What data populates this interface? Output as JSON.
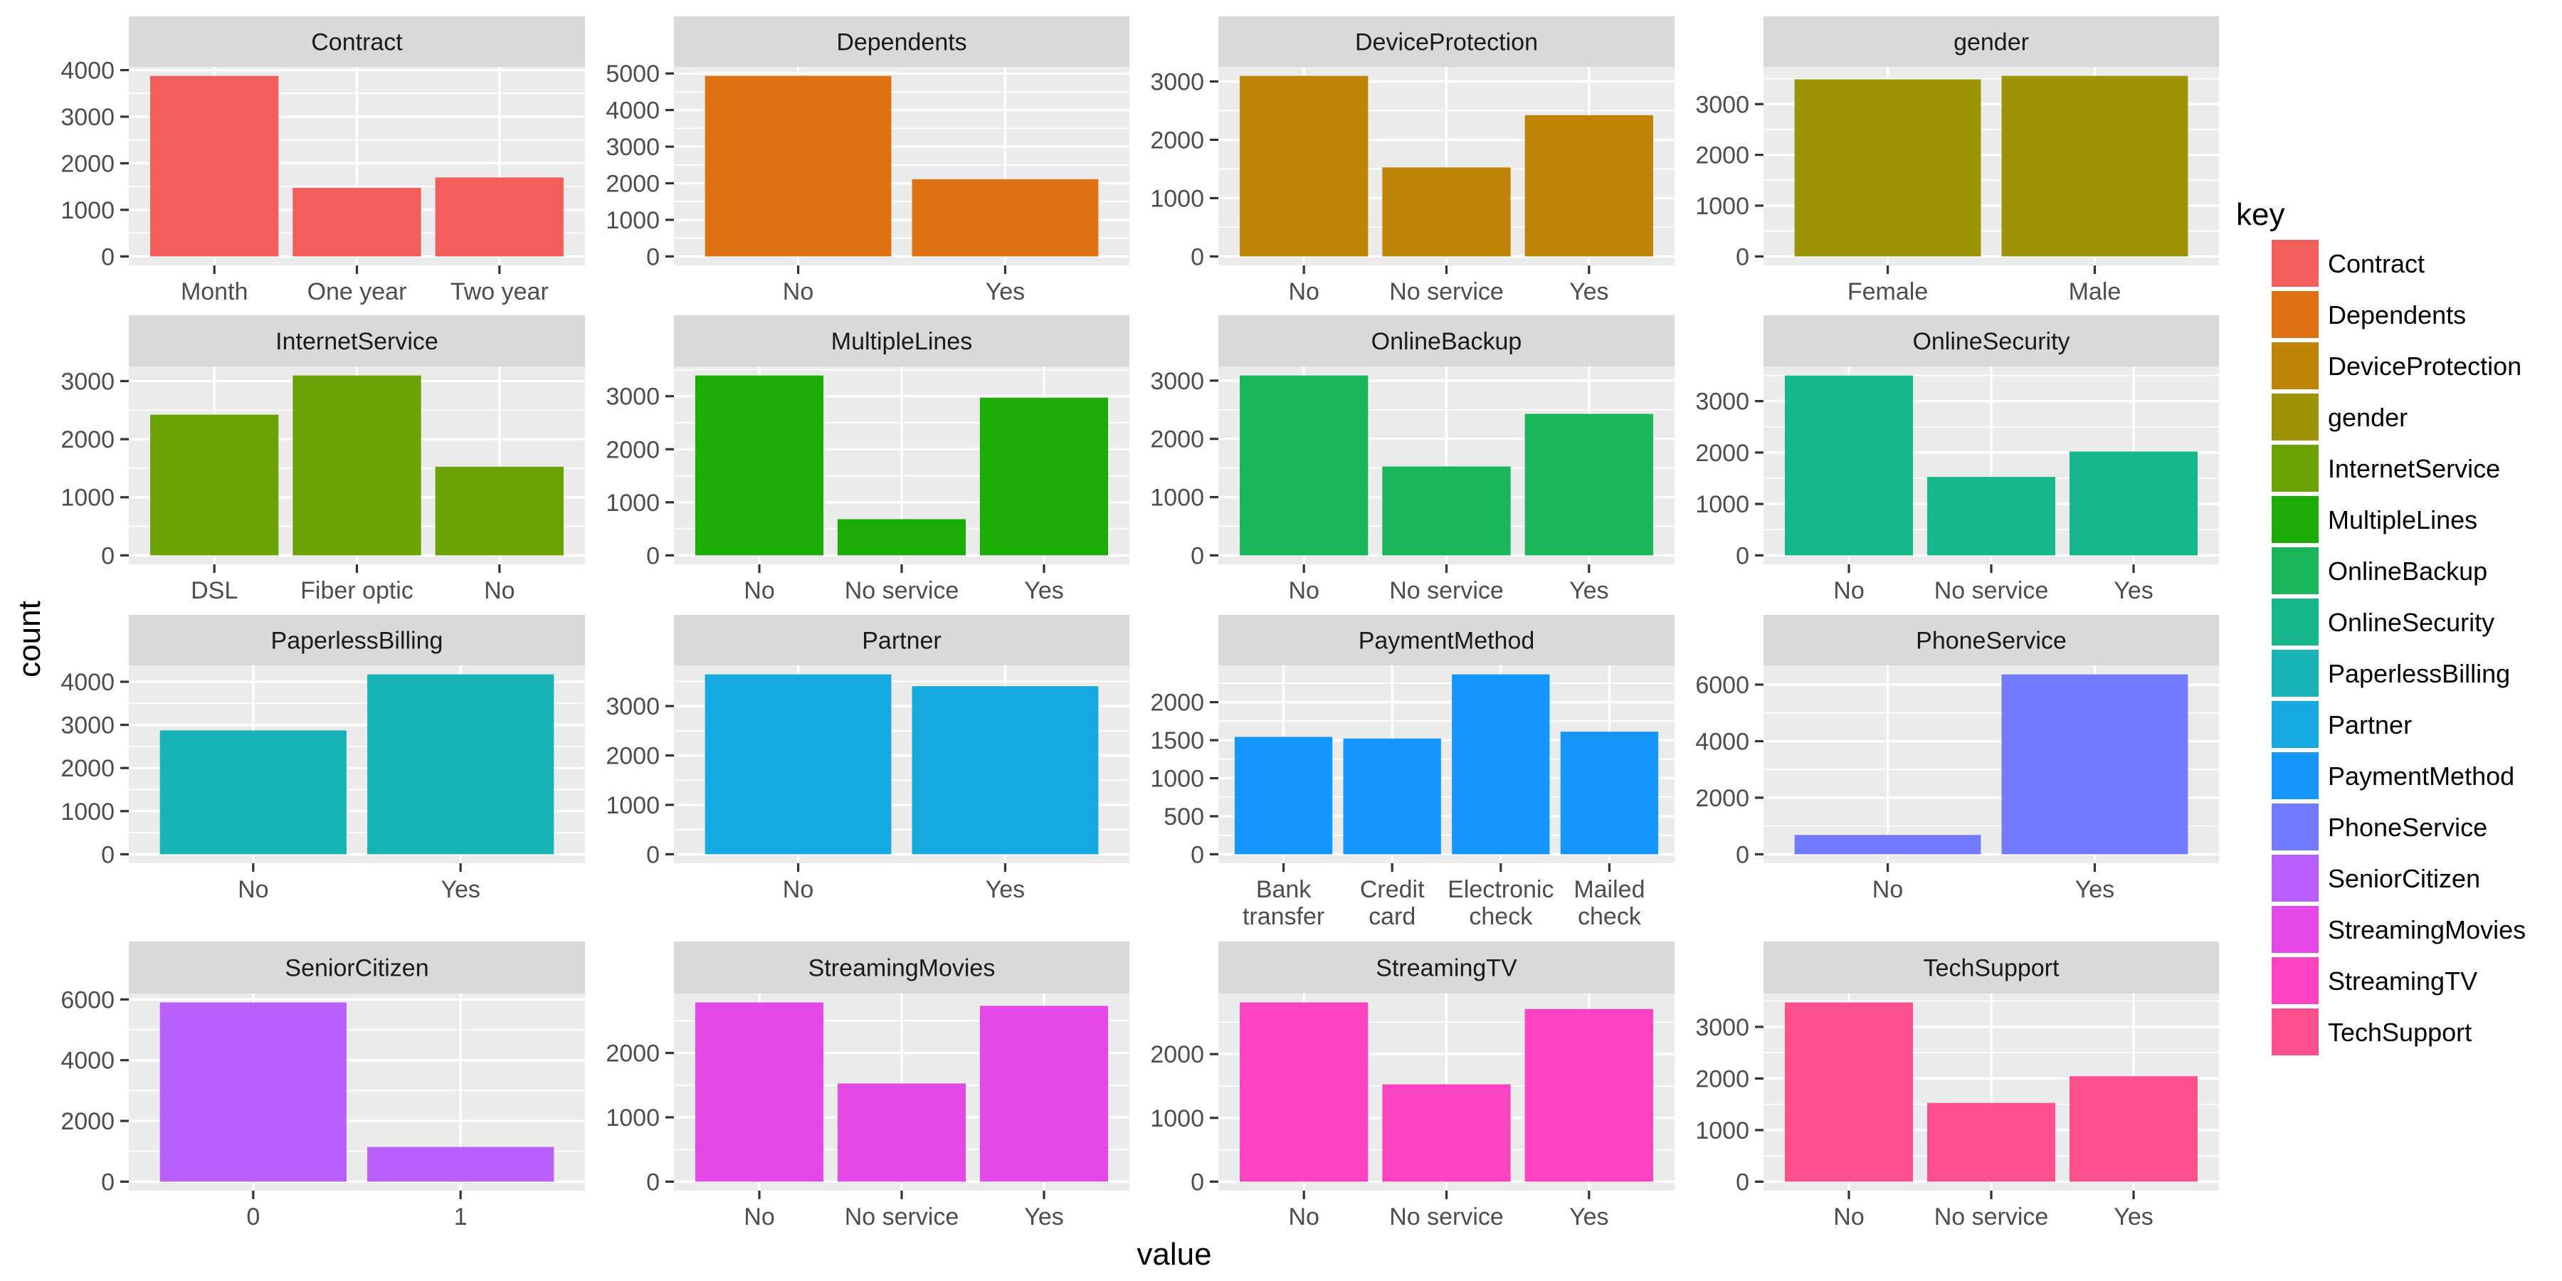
{
  "chart_data": {
    "type": "bar",
    "layout": "facet_wrap",
    "facet_columns": 4,
    "y_scales": "free",
    "grid": true,
    "xlabel": "value",
    "ylabel": "count",
    "legend": {
      "title": "key",
      "placement": "right",
      "entries": [
        {
          "label": "Contract",
          "color": "#F35E5A"
        },
        {
          "label": "Dependents",
          "color": "#DE7213"
        },
        {
          "label": "DeviceProtection",
          "color": "#C08405"
        },
        {
          "label": "gender",
          "color": "#9C9405"
        },
        {
          "label": "InternetService",
          "color": "#6BA305"
        },
        {
          "label": "MultipleLines",
          "color": "#1BAD06"
        },
        {
          "label": "OnlineBackup",
          "color": "#19B55A"
        },
        {
          "label": "OnlineSecurity",
          "color": "#16B88B"
        },
        {
          "label": "PaperlessBilling",
          "color": "#17B3B7"
        },
        {
          "label": "Partner",
          "color": "#16A9E0"
        },
        {
          "label": "PaymentMethod",
          "color": "#1496FC"
        },
        {
          "label": "PhoneService",
          "color": "#727BFF"
        },
        {
          "label": "SeniorCitizen",
          "color": "#B95FFD"
        },
        {
          "label": "StreamingMovies",
          "color": "#E449E8"
        },
        {
          "label": "StreamingTV",
          "color": "#FB43C2"
        },
        {
          "label": "TechSupport",
          "color": "#FD4F8E"
        }
      ]
    },
    "panels": [
      {
        "title": "Contract",
        "categories": [
          "Month",
          "One year",
          "Two year"
        ],
        "values": [
          3875,
          1473,
          1695
        ],
        "yticks": [
          0,
          1000,
          2000,
          3000,
          4000
        ]
      },
      {
        "title": "Dependents",
        "categories": [
          "No",
          "Yes"
        ],
        "values": [
          4933,
          2110
        ],
        "yticks": [
          0,
          1000,
          2000,
          3000,
          4000,
          5000
        ]
      },
      {
        "title": "DeviceProtection",
        "categories": [
          "No",
          "No service",
          "Yes"
        ],
        "values": [
          3095,
          1526,
          2422
        ],
        "yticks": [
          0,
          1000,
          2000,
          3000
        ]
      },
      {
        "title": "gender",
        "categories": [
          "Female",
          "Male"
        ],
        "values": [
          3488,
          3555
        ],
        "yticks": [
          0,
          1000,
          2000,
          3000
        ]
      },
      {
        "title": "InternetService",
        "categories": [
          "DSL",
          "Fiber optic",
          "No"
        ],
        "values": [
          2421,
          3096,
          1526
        ],
        "yticks": [
          0,
          1000,
          2000,
          3000
        ]
      },
      {
        "title": "MultipleLines",
        "categories": [
          "No",
          "No service",
          "Yes"
        ],
        "values": [
          3390,
          682,
          2971
        ],
        "yticks": [
          0,
          1000,
          2000,
          3000
        ]
      },
      {
        "title": "OnlineBackup",
        "categories": [
          "No",
          "No service",
          "Yes"
        ],
        "values": [
          3088,
          1526,
          2429
        ],
        "yticks": [
          0,
          1000,
          2000,
          3000
        ]
      },
      {
        "title": "OnlineSecurity",
        "categories": [
          "No",
          "No service",
          "Yes"
        ],
        "values": [
          3498,
          1526,
          2019
        ],
        "yticks": [
          0,
          1000,
          2000,
          3000
        ]
      },
      {
        "title": "PaperlessBilling",
        "categories": [
          "No",
          "Yes"
        ],
        "values": [
          2872,
          4171
        ],
        "yticks": [
          0,
          1000,
          2000,
          3000,
          4000
        ]
      },
      {
        "title": "Partner",
        "categories": [
          "No",
          "Yes"
        ],
        "values": [
          3641,
          3402
        ],
        "yticks": [
          0,
          1000,
          2000,
          3000
        ]
      },
      {
        "title": "PaymentMethod",
        "categories": [
          "Bank\ntransfer",
          "Credit\ncard",
          "Electronic\ncheck",
          "Mailed\ncheck"
        ],
        "values": [
          1544,
          1522,
          2365,
          1612
        ],
        "yticks": [
          0,
          500,
          1000,
          1500,
          2000
        ]
      },
      {
        "title": "PhoneService",
        "categories": [
          "No",
          "Yes"
        ],
        "values": [
          682,
          6361
        ],
        "yticks": [
          0,
          2000,
          4000,
          6000
        ]
      },
      {
        "title": "SeniorCitizen",
        "categories": [
          "0",
          "1"
        ],
        "values": [
          5901,
          1142
        ],
        "yticks": [
          0,
          2000,
          4000,
          6000
        ]
      },
      {
        "title": "StreamingMovies",
        "categories": [
          "No",
          "No service",
          "Yes"
        ],
        "values": [
          2785,
          1526,
          2732
        ],
        "yticks": [
          0,
          1000,
          2000
        ]
      },
      {
        "title": "StreamingTV",
        "categories": [
          "No",
          "No service",
          "Yes"
        ],
        "values": [
          2810,
          1526,
          2707
        ],
        "yticks": [
          0,
          1000,
          2000
        ]
      },
      {
        "title": "TechSupport",
        "categories": [
          "No",
          "No service",
          "Yes"
        ],
        "values": [
          3473,
          1526,
          2044
        ],
        "yticks": [
          0,
          1000,
          2000,
          3000
        ]
      }
    ]
  }
}
